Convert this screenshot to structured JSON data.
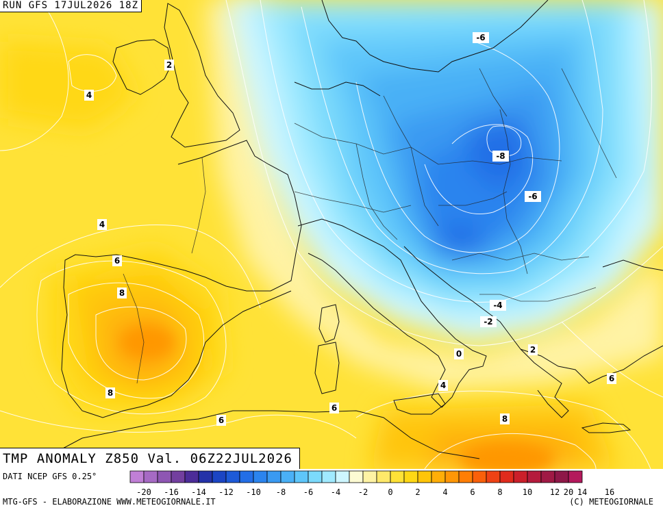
{
  "header": {
    "run_label": "RUN GFS 17JUL2026 18Z"
  },
  "title": {
    "text": "TMP ANOMALY Z850 Val. 06Z22JUL2026"
  },
  "footer": {
    "source": "DATI NCEP GFS 0.25°",
    "credit_left": "MTG-GFS - ELABORAZIONE WWW.METEOGIORNALE.IT",
    "credit_right": "(C) METEOGIORNALE"
  },
  "legend": {
    "colors": [
      "#c07fd6",
      "#a66ac4",
      "#8e56b3",
      "#733f9f",
      "#4c2c98",
      "#2432a8",
      "#1b45c4",
      "#1d5ad8",
      "#236ee6",
      "#2b84ee",
      "#3a9af2",
      "#4ab0f6",
      "#5ec6fa",
      "#7bdafc",
      "#a0eaff",
      "#cef6ff",
      "#fdfbd3",
      "#fff3a4",
      "#ffe96a",
      "#ffe237",
      "#ffd815",
      "#ffc509",
      "#ffae08",
      "#ff9706",
      "#ff7e05",
      "#f9600a",
      "#ef4214",
      "#e02b1c",
      "#cb1f2a",
      "#b51b3c",
      "#a01a45",
      "#8e1848",
      "#b4195c"
    ],
    "ticks": [
      "-20",
      "-16",
      "-14",
      "-12",
      "-10",
      "-8",
      "-6",
      "-4",
      "-2",
      "0",
      "2",
      "4",
      "6",
      "8",
      "10",
      "12",
      "14",
      "16",
      "20"
    ]
  },
  "contour_labels": [
    {
      "text": "2",
      "color": "#000000"
    },
    {
      "text": "4",
      "color": "#000000"
    },
    {
      "text": "-6",
      "color": "#000000"
    },
    {
      "text": "-8",
      "color": "#000000"
    },
    {
      "text": "-6",
      "color": "#000000"
    },
    {
      "text": "4",
      "color": "#000000"
    },
    {
      "text": "6",
      "color": "#000000"
    },
    {
      "text": "8",
      "color": "#000000"
    },
    {
      "text": "8",
      "color": "#000000"
    },
    {
      "text": "6",
      "color": "#000000"
    },
    {
      "text": "6",
      "color": "#000000"
    },
    {
      "text": "-4",
      "color": "#000000"
    },
    {
      "text": "-2",
      "color": "#000000"
    },
    {
      "text": "0",
      "color": "#000000"
    },
    {
      "text": "2",
      "color": "#000000"
    },
    {
      "text": "4",
      "color": "#000000"
    },
    {
      "text": "6",
      "color": "#000000"
    },
    {
      "text": "8",
      "color": "#000000"
    }
  ]
}
